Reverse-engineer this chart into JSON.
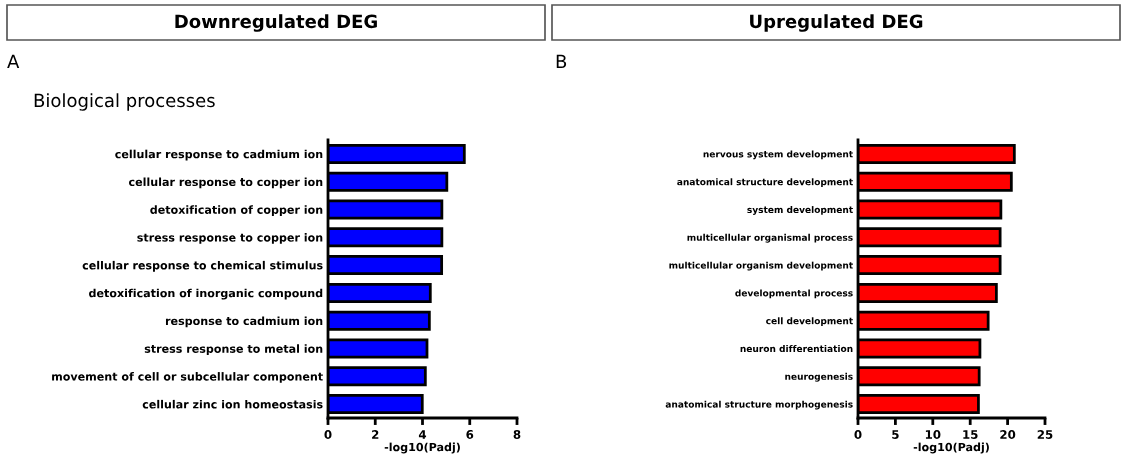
{
  "chart_data": [
    {
      "type": "bar",
      "orientation": "horizontal",
      "title": "Downregulated DEG",
      "subtitle": "Biological processes",
      "annotations": [
        "A"
      ],
      "xlabel": "-log10(Padj)",
      "categories": [
        "cellular response to cadmium ion",
        "cellular response to copper ion",
        "detoxification of copper ion",
        "stress response to copper ion",
        "cellular response to chemical stimulus",
        "detoxification of inorganic compound",
        "response to cadmium ion",
        "stress response to metal ion",
        "movement of cell or subcellular component",
        "cellular zinc ion homeostasis"
      ],
      "values": [
        5.77,
        5.03,
        4.82,
        4.82,
        4.81,
        4.33,
        4.29,
        4.19,
        4.12,
        3.99
      ],
      "color": "#0000ff",
      "xlim": [
        0,
        8
      ],
      "xticks": [
        0,
        2,
        4,
        6,
        8
      ],
      "grid": false,
      "legend": false
    },
    {
      "type": "bar",
      "orientation": "horizontal",
      "title": "Upregulated DEG",
      "annotations": [
        "B"
      ],
      "xlabel": "-log10(Padj)",
      "categories": [
        "nervous system development",
        "anatomical structure development",
        "system development",
        "multicellular organismal process",
        "multicellular organism development",
        "developmental process",
        "cell development",
        "neuron differentiation",
        "neurogenesis",
        "anatomical structure morphogenesis"
      ],
      "values": [
        20.9,
        20.5,
        19.1,
        19.0,
        19.0,
        18.5,
        17.4,
        16.3,
        16.2,
        16.1
      ],
      "color": "#ff0000",
      "xlim": [
        0,
        25
      ],
      "xticks": [
        0,
        5,
        10,
        15,
        20,
        25
      ],
      "grid": false,
      "legend": false
    }
  ]
}
